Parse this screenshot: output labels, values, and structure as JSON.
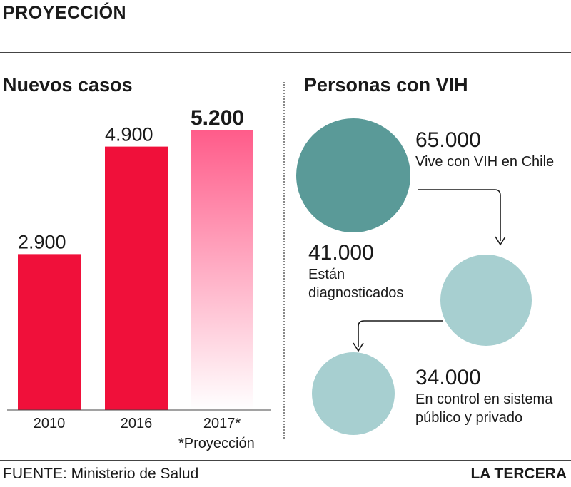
{
  "header": {
    "title": "PROYECCIÓN"
  },
  "left_panel": {
    "title": "Nuevos casos",
    "footnote": "*Proyección"
  },
  "right_panel": {
    "title": "Personas con VIH",
    "stats": [
      {
        "value": "65.000",
        "desc_lines": [
          "Vive con VIH en Chile"
        ]
      },
      {
        "value": "41.000",
        "desc_lines": [
          "Están",
          "diagnosticados"
        ]
      },
      {
        "value": "34.000",
        "desc_lines": [
          "En control en sistema",
          "público y privado"
        ]
      }
    ]
  },
  "footer": {
    "source": "FUENTE: Ministerio de Salud",
    "brand": "LA TERCERA"
  },
  "colors": {
    "bar": "#f0103a",
    "bar_projection_top": "#ff5c8a",
    "bubble_dark": "#5a9a98",
    "bubble_light": "#a7cfd0"
  },
  "chart_data": [
    {
      "type": "bar",
      "title": "Nuevos casos",
      "categories": [
        "2010",
        "2016",
        "2017*"
      ],
      "values": [
        2900,
        4900,
        5200
      ],
      "value_labels": [
        "2.900",
        "4.900",
        "5.200"
      ],
      "projected": [
        false,
        false,
        true
      ],
      "ylim": [
        0,
        5200
      ],
      "grid": false
    },
    {
      "type": "bubble",
      "title": "Personas con VIH",
      "categories": [
        "Vive con VIH en Chile",
        "Están diagnosticados",
        "En control en sistema público y privado"
      ],
      "values": [
        65000,
        41000,
        34000
      ],
      "value_labels": [
        "65.000",
        "41.000",
        "34.000"
      ]
    }
  ]
}
